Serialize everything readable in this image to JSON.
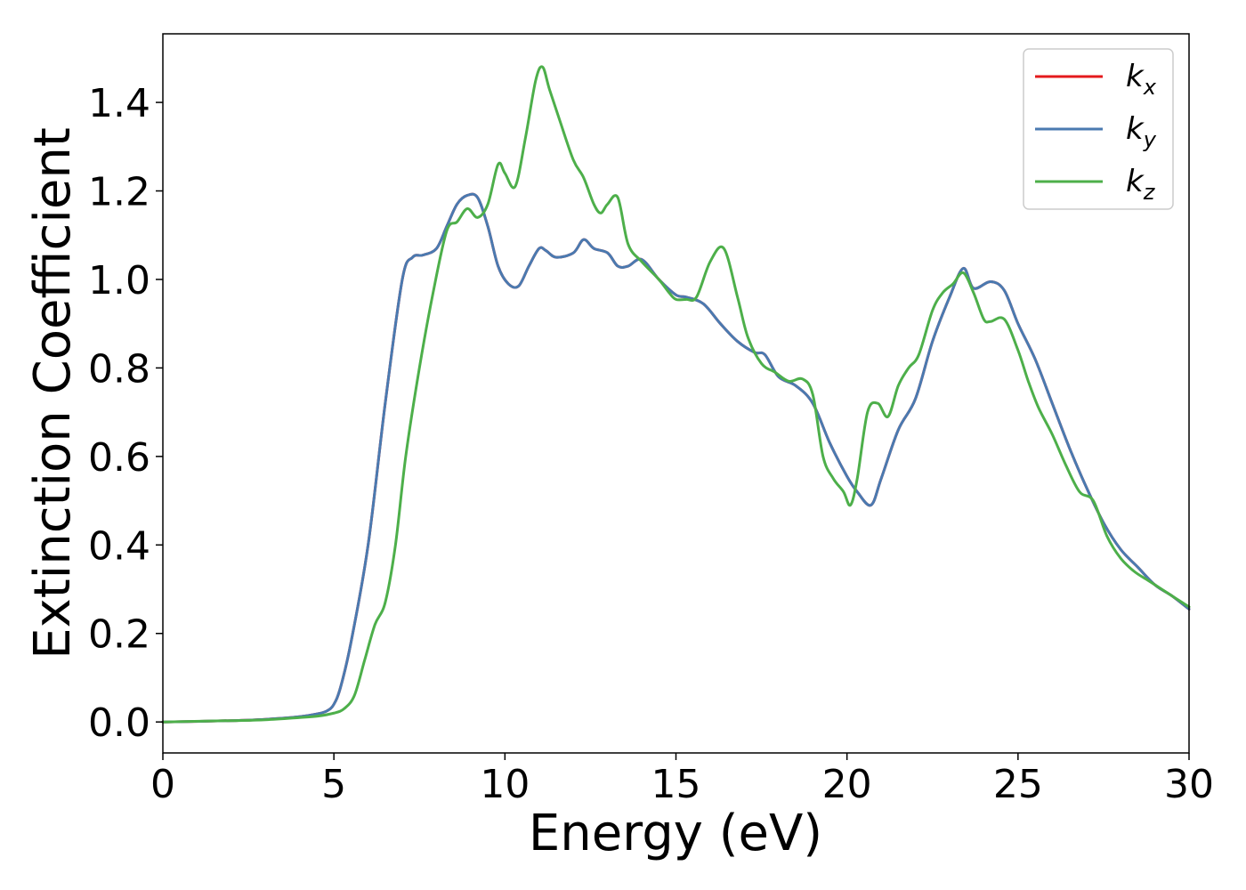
{
  "chart_data": {
    "type": "line",
    "xlabel": "Energy (eV)",
    "ylabel": "Extinction Coefficient",
    "xlim": [
      0,
      30
    ],
    "ylim": [
      -0.07,
      1.555
    ],
    "xticks": [
      0,
      5,
      10,
      15,
      20,
      25,
      30
    ],
    "xtick_labels": [
      "0",
      "5",
      "10",
      "15",
      "20",
      "25",
      "30"
    ],
    "yticks": [
      0.0,
      0.2,
      0.4,
      0.6,
      0.8,
      1.0,
      1.2,
      1.4
    ],
    "ytick_labels": [
      "0.0",
      "0.2",
      "0.4",
      "0.6",
      "0.8",
      "1.0",
      "1.2",
      "1.4"
    ],
    "grid": false,
    "legend_position": "top-right",
    "series": [
      {
        "name": "k_x",
        "label_base": "k",
        "label_sub": "x",
        "color": "#e41a1c",
        "x": [
          0,
          2,
          3,
          4,
          4.5,
          4.8,
          5.0,
          5.2,
          5.5,
          6.0,
          6.5,
          7.0,
          7.3,
          7.6,
          8.0,
          8.3,
          8.6,
          8.9,
          9.2,
          9.5,
          9.8,
          10.1,
          10.4,
          10.7,
          11.0,
          11.2,
          11.5,
          12.0,
          12.3,
          12.6,
          13.0,
          13.3,
          13.6,
          14.0,
          14.5,
          15.0,
          15.3,
          15.8,
          16.3,
          16.8,
          17.3,
          17.6,
          18.0,
          18.5,
          19.0,
          19.5,
          20.0,
          20.3,
          20.7,
          21.0,
          21.5,
          22.0,
          22.5,
          23.0,
          23.4,
          23.7,
          24.2,
          24.6,
          25.0,
          25.5,
          26.0,
          26.5,
          27.0,
          27.5,
          28.0,
          28.5,
          29.0,
          29.5,
          30.0
        ],
        "y": [
          0.0,
          0.003,
          0.006,
          0.012,
          0.018,
          0.025,
          0.04,
          0.08,
          0.18,
          0.4,
          0.72,
          1.0,
          1.05,
          1.055,
          1.07,
          1.12,
          1.17,
          1.19,
          1.185,
          1.12,
          1.03,
          0.99,
          0.985,
          1.03,
          1.07,
          1.065,
          1.05,
          1.06,
          1.09,
          1.07,
          1.06,
          1.03,
          1.03,
          1.045,
          1.0,
          0.965,
          0.96,
          0.945,
          0.9,
          0.86,
          0.835,
          0.83,
          0.78,
          0.76,
          0.72,
          0.63,
          0.555,
          0.52,
          0.49,
          0.55,
          0.66,
          0.73,
          0.86,
          0.96,
          1.025,
          0.98,
          0.995,
          0.975,
          0.9,
          0.82,
          0.72,
          0.62,
          0.53,
          0.45,
          0.39,
          0.35,
          0.31,
          0.285,
          0.255
        ]
      },
      {
        "name": "k_y",
        "label_base": "k",
        "label_sub": "y",
        "color": "#4a7ab0",
        "x": [
          0,
          2,
          3,
          4,
          4.5,
          4.8,
          5.0,
          5.2,
          5.5,
          6.0,
          6.5,
          7.0,
          7.3,
          7.6,
          8.0,
          8.3,
          8.6,
          8.9,
          9.2,
          9.5,
          9.8,
          10.1,
          10.4,
          10.7,
          11.0,
          11.2,
          11.5,
          12.0,
          12.3,
          12.6,
          13.0,
          13.3,
          13.6,
          14.0,
          14.5,
          15.0,
          15.3,
          15.8,
          16.3,
          16.8,
          17.3,
          17.6,
          18.0,
          18.5,
          19.0,
          19.5,
          20.0,
          20.3,
          20.7,
          21.0,
          21.5,
          22.0,
          22.5,
          23.0,
          23.4,
          23.7,
          24.2,
          24.6,
          25.0,
          25.5,
          26.0,
          26.5,
          27.0,
          27.5,
          28.0,
          28.5,
          29.0,
          29.5,
          30.0
        ],
        "y": [
          0.0,
          0.003,
          0.006,
          0.012,
          0.018,
          0.025,
          0.04,
          0.08,
          0.18,
          0.4,
          0.72,
          1.0,
          1.05,
          1.055,
          1.07,
          1.12,
          1.17,
          1.19,
          1.185,
          1.12,
          1.03,
          0.99,
          0.985,
          1.03,
          1.07,
          1.065,
          1.05,
          1.06,
          1.09,
          1.07,
          1.06,
          1.03,
          1.03,
          1.045,
          1.0,
          0.965,
          0.96,
          0.945,
          0.9,
          0.86,
          0.835,
          0.83,
          0.78,
          0.76,
          0.72,
          0.63,
          0.555,
          0.52,
          0.49,
          0.55,
          0.66,
          0.73,
          0.86,
          0.96,
          1.025,
          0.98,
          0.995,
          0.975,
          0.9,
          0.82,
          0.72,
          0.62,
          0.53,
          0.45,
          0.39,
          0.35,
          0.31,
          0.285,
          0.255
        ]
      },
      {
        "name": "k_z",
        "label_base": "k",
        "label_sub": "z",
        "color": "#4daf4a",
        "x": [
          0,
          2,
          3,
          4,
          4.5,
          5.0,
          5.3,
          5.6,
          5.9,
          6.2,
          6.5,
          6.8,
          7.1,
          7.5,
          7.9,
          8.3,
          8.6,
          8.9,
          9.2,
          9.5,
          9.8,
          10.0,
          10.3,
          10.6,
          10.9,
          11.1,
          11.3,
          11.6,
          12.0,
          12.3,
          12.6,
          12.8,
          13.0,
          13.3,
          13.6,
          14.0,
          14.5,
          14.8,
          15.0,
          15.3,
          15.6,
          16.0,
          16.4,
          16.8,
          17.1,
          17.5,
          17.9,
          18.3,
          18.7,
          19.0,
          19.3,
          19.6,
          19.9,
          20.1,
          20.3,
          20.6,
          20.9,
          21.2,
          21.5,
          21.8,
          22.1,
          22.5,
          22.8,
          23.1,
          23.4,
          23.7,
          24.0,
          24.2,
          24.6,
          25.0,
          25.3,
          25.6,
          26.0,
          26.4,
          26.8,
          27.2,
          27.6,
          28.0,
          28.4,
          28.8,
          29.2,
          29.6,
          30.0
        ],
        "y": [
          0.0,
          0.003,
          0.005,
          0.01,
          0.013,
          0.02,
          0.03,
          0.06,
          0.14,
          0.22,
          0.27,
          0.4,
          0.6,
          0.8,
          0.97,
          1.11,
          1.13,
          1.16,
          1.14,
          1.17,
          1.26,
          1.24,
          1.21,
          1.32,
          1.45,
          1.48,
          1.43,
          1.36,
          1.27,
          1.23,
          1.17,
          1.15,
          1.17,
          1.185,
          1.08,
          1.04,
          1.0,
          0.97,
          0.955,
          0.955,
          0.96,
          1.04,
          1.07,
          0.96,
          0.87,
          0.81,
          0.79,
          0.77,
          0.775,
          0.74,
          0.6,
          0.55,
          0.52,
          0.49,
          0.55,
          0.7,
          0.72,
          0.69,
          0.76,
          0.8,
          0.83,
          0.93,
          0.97,
          0.99,
          1.015,
          0.97,
          0.91,
          0.905,
          0.91,
          0.84,
          0.77,
          0.71,
          0.65,
          0.58,
          0.52,
          0.5,
          0.42,
          0.37,
          0.34,
          0.32,
          0.3,
          0.28,
          0.26
        ]
      }
    ]
  }
}
